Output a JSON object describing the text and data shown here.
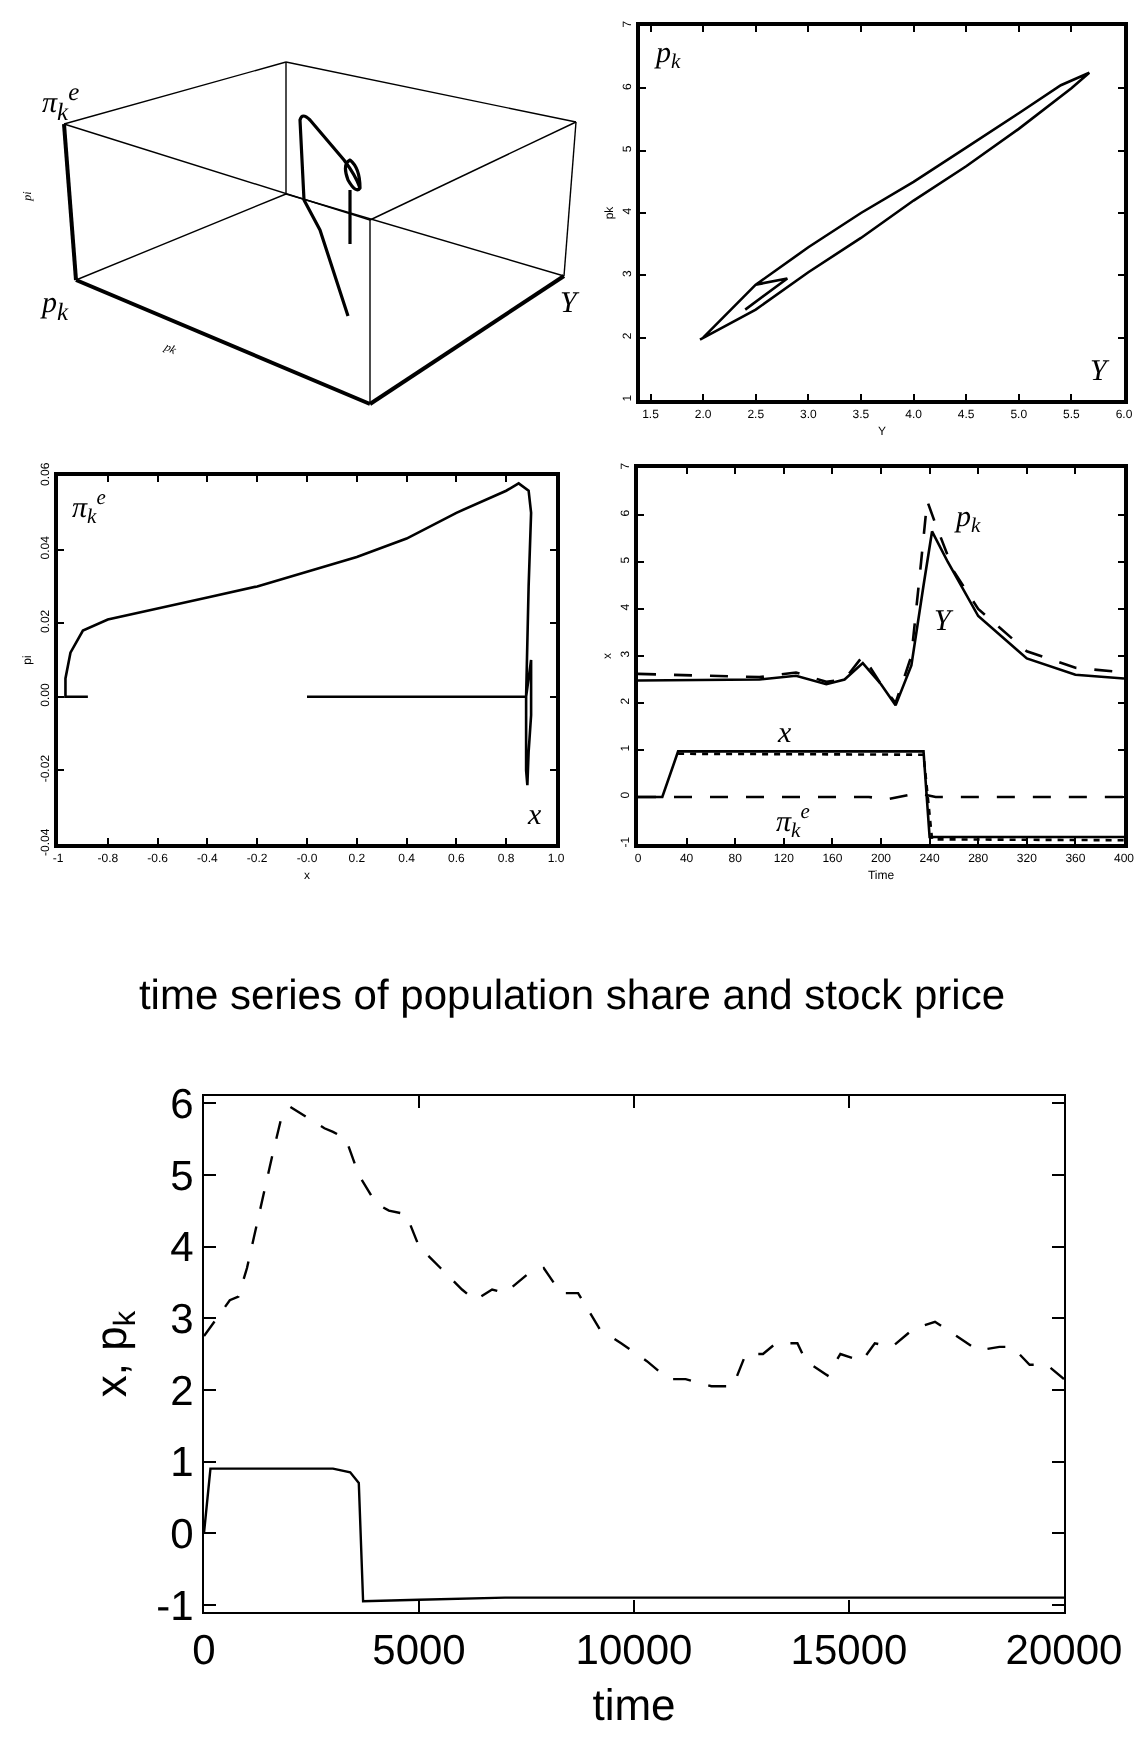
{
  "chart_data": [
    {
      "type": "other",
      "annotations": [
        "π$_{k}$$^{e}$",
        "p$_{k}$",
        "Y",
        "pi",
        "pk"
      ]
    },
    {
      "type": "line",
      "xlabel": "Y",
      "ylabel": "pk",
      "annotations": [
        "p$_{k}$",
        "Y"
      ],
      "xlim": [
        1.4,
        6.0
      ],
      "ylim": [
        1,
        7
      ],
      "xticks": [
        1.5,
        {
          "value": 2,
          "label": "2.0"
        },
        2.5,
        {
          "value": 3,
          "label": "3.0"
        },
        3.5,
        {
          "value": 4,
          "label": "4.0"
        },
        4.5,
        {
          "value": 5,
          "label": "5.0"
        },
        5.5,
        {
          "value": 6,
          "label": "6.0"
        }
      ],
      "yticks": [
        1,
        2,
        3,
        4,
        5,
        6,
        7
      ],
      "series": [
        {
          "color": "#000000",
          "line_style": "solid",
          "x": [
            2.4,
            2.8,
            2.5,
            2.0,
            2.5,
            3.0,
            3.5,
            4.0,
            4.5,
            5.0,
            5.4,
            5.67,
            5.5,
            5.0,
            4.5,
            4.0,
            3.5,
            3.0,
            2.5,
            1.97
          ],
          "values": [
            2.45,
            2.95,
            2.85,
            2.0,
            2.85,
            3.45,
            4.0,
            4.5,
            5.05,
            5.6,
            6.05,
            6.25,
            6.0,
            5.35,
            4.75,
            4.2,
            3.6,
            3.05,
            2.45,
            1.97
          ]
        }
      ]
    },
    {
      "type": "line",
      "xlabel": "x",
      "ylabel": "pi",
      "annotations": [
        "π$_{k}$$^{e}$",
        "x"
      ],
      "xlim": [
        -1,
        1
      ],
      "ylim": [
        -0.04,
        0.06
      ],
      "xticks": [
        -1,
        -0.8,
        -0.6,
        -0.4,
        -0.2,
        {
          "value": 0,
          "label": "-0.0"
        },
        0.2,
        0.4,
        0.6,
        0.8,
        {
          "value": 1,
          "label": "1.0"
        }
      ],
      "yticks": [
        -0.04,
        -0.02,
        {
          "value": 0,
          "label": "0.00"
        },
        0.02,
        0.04,
        0.06
      ],
      "series": [
        {
          "color": "#000000",
          "line_style": "solid",
          "x": [
            0,
            0.88,
            0.9,
            0.9,
            0.89,
            0.885,
            0.88,
            0.88,
            0.89,
            0.9,
            0.89,
            0.85,
            0.8,
            0.6,
            0.4,
            0.2,
            0,
            -0.2,
            -0.4,
            -0.6,
            -0.8,
            -0.9,
            -0.95,
            -0.97,
            -0.97,
            -0.88
          ],
          "values": [
            0,
            0,
            0.01,
            -0.005,
            -0.015,
            -0.024,
            -0.02,
            0,
            0.03,
            0.05,
            0.056,
            0.058,
            0.056,
            0.05,
            0.043,
            0.038,
            0.034,
            0.03,
            0.027,
            0.024,
            0.021,
            0.018,
            0.012,
            0.005,
            0,
            0
          ]
        }
      ]
    },
    {
      "type": "line",
      "xlabel": "Time",
      "ylabel": "x",
      "annotations": [
        "p$_{k}$",
        "Y",
        "x",
        "π$_{k}$$^{e}$"
      ],
      "xlim": [
        0,
        400
      ],
      "ylim": [
        -1,
        7
      ],
      "xticks": [
        0,
        40,
        80,
        120,
        160,
        200,
        240,
        280,
        320,
        360,
        400
      ],
      "yticks": [
        -1,
        0,
        1,
        2,
        3,
        4,
        5,
        6,
        7
      ],
      "series": [
        {
          "color": "#000000",
          "line_style": "solid",
          "x": [
            0,
            100,
            130,
            155,
            170,
            185,
            200,
            212,
            225,
            235,
            242,
            255,
            280,
            320,
            360,
            400
          ],
          "values": [
            2.48,
            2.5,
            2.58,
            2.4,
            2.5,
            2.85,
            2.4,
            1.95,
            2.8,
            4.5,
            5.65,
            5.0,
            3.85,
            2.95,
            2.6,
            2.52
          ]
        },
        {
          "color": "#000000",
          "line_style": "dashed",
          "x": [
            0,
            100,
            130,
            155,
            170,
            185,
            200,
            212,
            225,
            233,
            238,
            245,
            260,
            280,
            320,
            360,
            400
          ],
          "values": [
            2.62,
            2.55,
            2.65,
            2.45,
            2.5,
            3.0,
            2.4,
            2.0,
            3.0,
            5.0,
            6.3,
            5.8,
            4.8,
            4.0,
            3.1,
            2.75,
            2.65
          ]
        },
        {
          "color": "#000000",
          "line_style": "solid",
          "x": [
            0,
            20,
            33,
            235,
            240,
            400
          ],
          "values": [
            0,
            0,
            0.97,
            0.97,
            -0.85,
            -0.85
          ]
        },
        {
          "color": "#000000",
          "line_style": "dotted",
          "x": [
            33,
            235,
            242,
            400
          ],
          "values": [
            0.92,
            0.9,
            -0.9,
            -0.92
          ]
        },
        {
          "color": "#000000",
          "line_style": "dashed",
          "x": [
            0,
            190,
            205,
            230,
            245,
            400
          ],
          "values": [
            0,
            0,
            -0.05,
            0.08,
            0,
            0
          ]
        }
      ]
    },
    {
      "type": "line",
      "title": "time series of population share and stock price",
      "xlabel": "time",
      "ylabel": "x, p$_{k}$",
      "xlim": [
        0,
        20000
      ],
      "ylim": [
        -1.1,
        6.1
      ],
      "xticks": [
        0,
        5000,
        10000,
        15000,
        20000
      ],
      "yticks": [
        -1,
        0,
        1,
        2,
        3,
        4,
        5,
        6
      ],
      "series": [
        {
          "color": "#000000",
          "line_style": "dashed",
          "x": [
            0,
            300,
            600,
            800,
            1000,
            1300,
            1600,
            1800,
            2000,
            2400,
            2800,
            3000,
            3300,
            3600,
            4000,
            4300,
            4700,
            5000,
            5500,
            6000,
            6300,
            6700,
            7000,
            7500,
            7900,
            8300,
            8700,
            9200,
            9700,
            10300,
            10800,
            11200,
            11800,
            12300,
            12600,
            13000,
            13300,
            13800,
            14000,
            14500,
            14800,
            15300,
            15600,
            16000,
            16500,
            17000,
            17500,
            18000,
            18500,
            18800,
            19200,
            19600,
            20000
          ],
          "values": [
            2.75,
            3.0,
            3.25,
            3.3,
            3.7,
            4.5,
            5.3,
            5.8,
            5.95,
            5.8,
            5.65,
            5.6,
            5.5,
            5.0,
            4.6,
            4.5,
            4.45,
            4.0,
            3.7,
            3.4,
            3.25,
            3.4,
            3.35,
            3.6,
            3.7,
            3.35,
            3.35,
            2.85,
            2.65,
            2.4,
            2.15,
            2.15,
            2.05,
            2.05,
            2.5,
            2.5,
            2.65,
            2.65,
            2.4,
            2.2,
            2.5,
            2.4,
            2.65,
            2.6,
            2.85,
            2.95,
            2.75,
            2.55,
            2.6,
            2.6,
            2.35,
            2.35,
            2.15
          ]
        },
        {
          "color": "#000000",
          "line_style": "solid",
          "x": [
            0,
            150,
            1000,
            3000,
            3400,
            3600,
            3700,
            5000,
            7000,
            20000
          ],
          "values": [
            0,
            0.9,
            0.9,
            0.9,
            0.85,
            0.7,
            -0.95,
            -0.93,
            -0.9,
            -0.9
          ]
        }
      ]
    }
  ]
}
